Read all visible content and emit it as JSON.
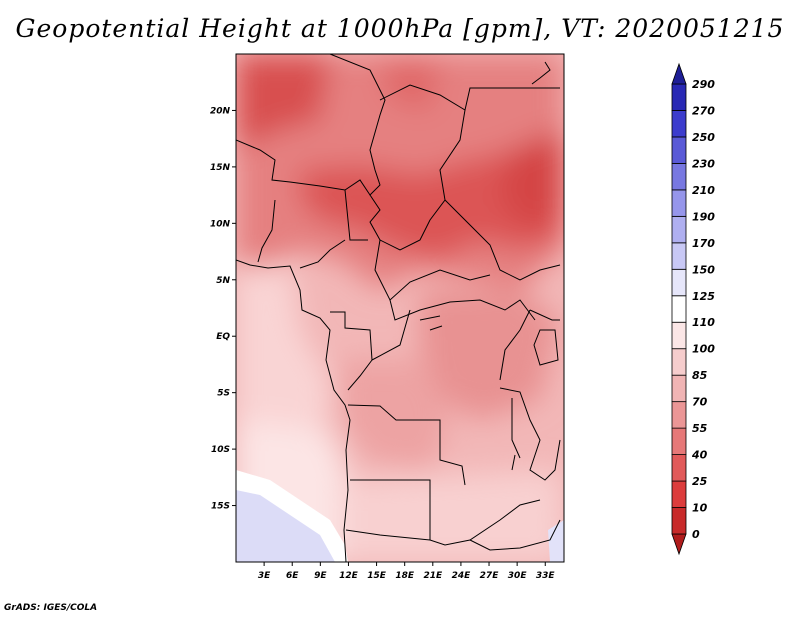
{
  "title": "Geopotential Height at 1000hPa [gpm], VT: 2020051215",
  "credit": "GrADS: IGES/COLA",
  "map": {
    "lon_range": [
      0,
      35
    ],
    "lat_range": [
      -20,
      25
    ],
    "lat_ticks": [
      "20N",
      "15N",
      "10N",
      "5N",
      "EQ",
      "5S",
      "10S",
      "15S"
    ],
    "lon_ticks": [
      "3E",
      "6E",
      "9E",
      "12E",
      "15E",
      "18E",
      "21E",
      "24E",
      "27E",
      "30E",
      "33E"
    ]
  },
  "colorbar": {
    "labels": [
      "0",
      "10",
      "25",
      "40",
      "55",
      "70",
      "85",
      "100",
      "110",
      "125",
      "150",
      "170",
      "190",
      "210",
      "230",
      "250",
      "270",
      "290"
    ],
    "colors": [
      "#b01c1c",
      "#c82a2a",
      "#dc3c3c",
      "#e15a5a",
      "#e67878",
      "#eb9696",
      "#f0b4b4",
      "#f6cdcd",
      "#fbe6e6",
      "#ffffff",
      "#e6e6fa",
      "#c8c8f5",
      "#afaff0",
      "#9696eb",
      "#7878e1",
      "#5a5ad7",
      "#3c3ccd",
      "#2828b4",
      "#1e1e96"
    ]
  }
}
